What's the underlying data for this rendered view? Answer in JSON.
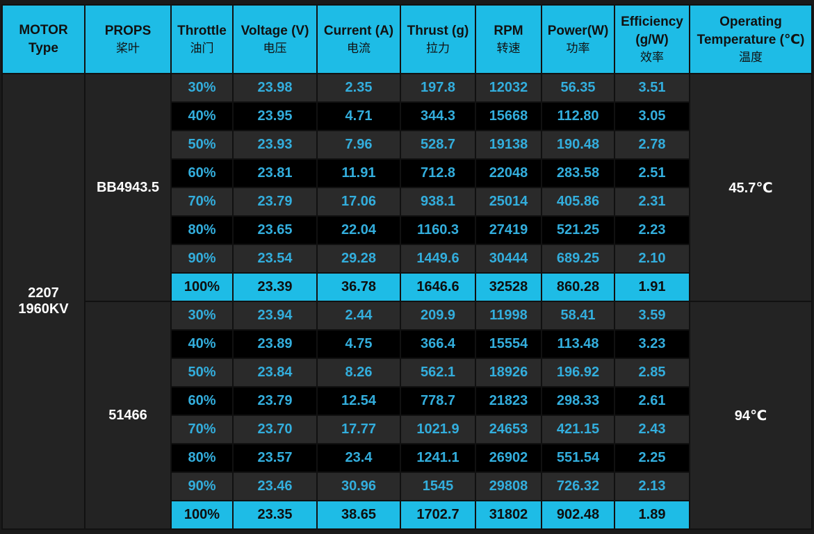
{
  "headers": [
    {
      "en": "MOTOR\nType",
      "cn": ""
    },
    {
      "en": "PROPS",
      "cn": "桨叶"
    },
    {
      "en": "Throttle",
      "cn": "油门"
    },
    {
      "en": "Voltage (V)",
      "cn": "电压"
    },
    {
      "en": "Current (A)",
      "cn": "电流"
    },
    {
      "en": "Thrust (g)",
      "cn": "拉力"
    },
    {
      "en": "RPM",
      "cn": "转速"
    },
    {
      "en": "Power(W)",
      "cn": "功率"
    },
    {
      "en": "Efficiency\n(g/W)",
      "cn": "效率"
    },
    {
      "en": "Operating\nTemperature (℃)",
      "cn": "温度"
    }
  ],
  "motor": "2207\n1960KV",
  "groups": [
    {
      "prop": "BB4943.5",
      "temperature": "45.7℃",
      "rows": [
        [
          "30%",
          "23.98",
          "2.35",
          "197.8",
          "12032",
          "56.35",
          "3.51"
        ],
        [
          "40%",
          "23.95",
          "4.71",
          "344.3",
          "15668",
          "112.80",
          "3.05"
        ],
        [
          "50%",
          "23.93",
          "7.96",
          "528.7",
          "19138",
          "190.48",
          "2.78"
        ],
        [
          "60%",
          "23.81",
          "11.91",
          "712.8",
          "22048",
          "283.58",
          "2.51"
        ],
        [
          "70%",
          "23.79",
          "17.06",
          "938.1",
          "25014",
          "405.86",
          "2.31"
        ],
        [
          "80%",
          "23.65",
          "22.04",
          "1160.3",
          "27419",
          "521.25",
          "2.23"
        ],
        [
          "90%",
          "23.54",
          "29.28",
          "1449.6",
          "30444",
          "689.25",
          "2.10"
        ],
        [
          "100%",
          "23.39",
          "36.78",
          "1646.6",
          "32528",
          "860.28",
          "1.91"
        ]
      ]
    },
    {
      "prop": "51466",
      "temperature": "94℃",
      "rows": [
        [
          "30%",
          "23.94",
          "2.44",
          "209.9",
          "11998",
          "58.41",
          "3.59"
        ],
        [
          "40%",
          "23.89",
          "4.75",
          "366.4",
          "15554",
          "113.48",
          "3.23"
        ],
        [
          "50%",
          "23.84",
          "8.26",
          "562.1",
          "18926",
          "196.92",
          "2.85"
        ],
        [
          "60%",
          "23.79",
          "12.54",
          "778.7",
          "21823",
          "298.33",
          "2.61"
        ],
        [
          "70%",
          "23.70",
          "17.77",
          "1021.9",
          "24653",
          "421.15",
          "2.43"
        ],
        [
          "80%",
          "23.57",
          "23.4",
          "1241.1",
          "26902",
          "551.54",
          "2.25"
        ],
        [
          "90%",
          "23.46",
          "30.96",
          "1545",
          "29808",
          "726.32",
          "2.13"
        ],
        [
          "100%",
          "23.35",
          "38.65",
          "1702.7",
          "31802",
          "902.48",
          "1.89"
        ]
      ]
    }
  ],
  "colors": {
    "header_bg": "#1ebce6",
    "value_text": "#33aedd",
    "highlight_bg": "#1ebce6",
    "row_light": "#2a2a2a",
    "row_dark": "#000000"
  }
}
